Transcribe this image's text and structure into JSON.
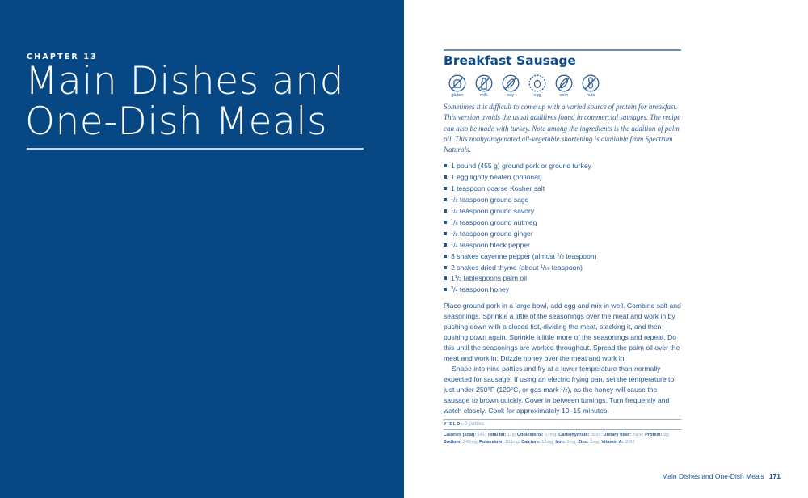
{
  "chapter": {
    "label": "CHAPTER 13",
    "title_line1": "Main Dishes and",
    "title_line2": "One-Dish Meals"
  },
  "recipe": {
    "title": "Breakfast Sausage",
    "allergens": [
      {
        "label": "gluten",
        "icon": "bread-crossed-icon"
      },
      {
        "label": "milk",
        "icon": "milk-bottle-crossed-icon"
      },
      {
        "label": "soy",
        "icon": "soybean-crossed-icon"
      },
      {
        "label": "egg",
        "icon": "egg-icon"
      },
      {
        "label": "corn",
        "icon": "corn-crossed-icon"
      },
      {
        "label": "nuts",
        "icon": "peanut-crossed-icon"
      }
    ],
    "intro": "Sometimes it is difficult to come up with a varied source of protein for breakfast. This version avoids the usual additives found in commercial sausages. The recipe can also be made with turkey. Note among the ingredients is the addition of palm oil. This nonhydrogenated all-vegetable shortening is available from Spectrum Naturals.",
    "ingredients": [
      [
        {
          "t": "1 pound (455 g) ground pork or ground turkey"
        }
      ],
      [
        {
          "t": "1 egg lightly beaten (optional)"
        }
      ],
      [
        {
          "t": "1 teaspoon coarse Kosher salt"
        }
      ],
      [
        {
          "n": "1",
          "d": "2"
        },
        {
          "t": " teaspoon ground sage"
        }
      ],
      [
        {
          "n": "1",
          "d": "4"
        },
        {
          "t": " teaspoon ground savory"
        }
      ],
      [
        {
          "n": "1",
          "d": "8"
        },
        {
          "t": " teaspoon ground nutmeg"
        }
      ],
      [
        {
          "n": "1",
          "d": "8"
        },
        {
          "t": " teaspoon ground ginger"
        }
      ],
      [
        {
          "n": "1",
          "d": "4"
        },
        {
          "t": " teaspoon black pepper"
        }
      ],
      [
        {
          "t": "3 shakes cayenne pepper (almost "
        },
        {
          "n": "1",
          "d": "8"
        },
        {
          "t": " teaspoon)"
        }
      ],
      [
        {
          "t": "2 shakes dried thyme (about "
        },
        {
          "n": "1",
          "d": "16"
        },
        {
          "t": " teaspoon)"
        }
      ],
      [
        {
          "t": "1"
        },
        {
          "n": "1",
          "d": "2"
        },
        {
          "t": " tablespoons palm oil"
        }
      ],
      [
        {
          "n": "3",
          "d": "4"
        },
        {
          "t": " teaspoon honey"
        }
      ]
    ],
    "directions": [
      [
        {
          "t": "Place ground pork in a large bowl, add egg and mix in well. Combine salt and seasonings. Sprinkle a little of the seasonings over the meat and work in by pushing down with a closed fist, dividing the meat, stacking it, and then pushing down again. Sprinkle a little more of the seasonings and repeat. Do this until the seasonings are worked throughout. Spread the palm oil over the meat and work in. Drizzle honey over the meat and work in."
        }
      ],
      [
        {
          "t": "Shape into nine patties and fry at a lower temperature than normally expected for sausage. If using an electric frying pan, set the temperature to just under 250°F (120°C, or gas mark "
        },
        {
          "n": "1",
          "d": "2"
        },
        {
          "t": "), as the honey will cause the sausage to brown quickly. Cover in between turnings. Turn frequently and watch closely. Cook for approximately 10–15 minutes."
        }
      ]
    ],
    "yield_label": "YIELD:",
    "yield_value": "9 patties",
    "nutrition": [
      [
        "Calories (kcal):",
        "141"
      ],
      [
        "Total fat:",
        "11g"
      ],
      [
        "Cholesterol:",
        "57mg"
      ],
      [
        "Carbohydrate:",
        "trace"
      ],
      [
        "Dietary fiber:",
        "trace"
      ],
      [
        "Protein:",
        "9g"
      ],
      [
        "Sodium:",
        "243mg"
      ],
      [
        "Potassium:",
        "153mg"
      ],
      [
        "Calcium:",
        "12mg"
      ],
      [
        "Iron:",
        "1mg"
      ],
      [
        "Zinc:",
        "1mg"
      ],
      [
        "Vitamin A:",
        "50IU"
      ]
    ]
  },
  "footer": {
    "running_title": "Main Dishes and One-Dish Meals",
    "page_number": "171"
  }
}
